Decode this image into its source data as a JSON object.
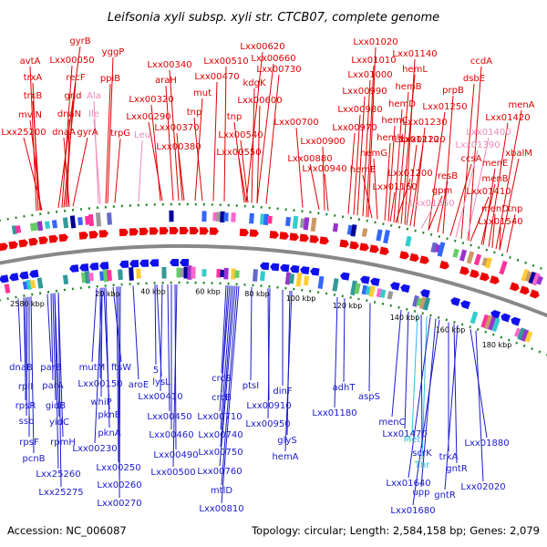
{
  "title": "Leifsonia xyli subsp. xyli str. CTCB07, complete genome",
  "footer": {
    "accession": "Accession: NC_006087",
    "summary": "Topology: circular; Length: 2,584,158 bp; Genes: 2,079"
  },
  "colors": {
    "upper_label": "#dd0000",
    "upper_label_pink": "#ee88bb",
    "lower_label": "#1a1acc",
    "lower_label_cyan": "#33bbdd",
    "forward_arrow": "#ee0000",
    "reverse_arrow": "#1010ee",
    "backbone": "#888888",
    "dotted_ring": "#228822"
  },
  "kbp_ticks": [
    "2580 kbp",
    "20 kbp",
    "40 kbp",
    "60 kbp",
    "80 kbp",
    "100 kbp",
    "120 kbp",
    "140 kbp",
    "160 kbp",
    "180 kbp"
  ],
  "upper_labels": [
    {
      "text": "avtA",
      "color": "red"
    },
    {
      "text": "trxA",
      "color": "red"
    },
    {
      "text": "trxB",
      "color": "red"
    },
    {
      "text": "mviN",
      "color": "red"
    },
    {
      "text": "Lxx25200",
      "color": "red"
    },
    {
      "text": "gyrB",
      "color": "red"
    },
    {
      "text": "Lxx00050",
      "color": "red"
    },
    {
      "text": "recF",
      "color": "red"
    },
    {
      "text": "gnd",
      "color": "red"
    },
    {
      "text": "dnaN",
      "color": "red"
    },
    {
      "text": "dnaA",
      "color": "red"
    },
    {
      "text": "gyrA",
      "color": "red"
    },
    {
      "text": "yggP",
      "color": "red"
    },
    {
      "text": "ppiB",
      "color": "red"
    },
    {
      "text": "Ala",
      "color": "pink"
    },
    {
      "text": "Ile",
      "color": "pink"
    },
    {
      "text": "trpG",
      "color": "red"
    },
    {
      "text": "Leu",
      "color": "pink"
    },
    {
      "text": "araH",
      "color": "red"
    },
    {
      "text": "Lxx00340",
      "color": "red"
    },
    {
      "text": "Lxx00320",
      "color": "red"
    },
    {
      "text": "Lxx00290",
      "color": "red"
    },
    {
      "text": "Lxx00370",
      "color": "red"
    },
    {
      "text": "Lxx00380",
      "color": "red"
    },
    {
      "text": "mut",
      "color": "red"
    },
    {
      "text": "tnp",
      "color": "red"
    },
    {
      "text": "Lxx00470",
      "color": "red"
    },
    {
      "text": "Lxx00510",
      "color": "red"
    },
    {
      "text": "Lxx00620",
      "color": "red"
    },
    {
      "text": "Lxx00660",
      "color": "red"
    },
    {
      "text": "Lxx00730",
      "color": "red"
    },
    {
      "text": "kdgK",
      "color": "red"
    },
    {
      "text": "Lxx00600",
      "color": "red"
    },
    {
      "text": "tnp",
      "color": "red"
    },
    {
      "text": "Lxx00540",
      "color": "red"
    },
    {
      "text": "Lxx00550",
      "color": "red"
    },
    {
      "text": "Lxx00700",
      "color": "red"
    },
    {
      "text": "Lxx01020",
      "color": "red"
    },
    {
      "text": "Lxx01010",
      "color": "red"
    },
    {
      "text": "Lxx01000",
      "color": "red"
    },
    {
      "text": "Lxx00990",
      "color": "red"
    },
    {
      "text": "Lxx00980",
      "color": "red"
    },
    {
      "text": "Lxx00970",
      "color": "red"
    },
    {
      "text": "Lxx00900",
      "color": "red"
    },
    {
      "text": "Lxx00880",
      "color": "red"
    },
    {
      "text": "Lxx00940",
      "color": "red"
    },
    {
      "text": "Lxx01140",
      "color": "red"
    },
    {
      "text": "hemL",
      "color": "red"
    },
    {
      "text": "hemB",
      "color": "red"
    },
    {
      "text": "hemD",
      "color": "red"
    },
    {
      "text": "hemC",
      "color": "red"
    },
    {
      "text": "hemH",
      "color": "red"
    },
    {
      "text": "hemG",
      "color": "red"
    },
    {
      "text": "hemE",
      "color": "red"
    },
    {
      "text": "Lxx01160",
      "color": "red"
    },
    {
      "text": "Lxx01200",
      "color": "red"
    },
    {
      "text": "Lxx01210",
      "color": "red"
    },
    {
      "text": "Lxx01220",
      "color": "red"
    },
    {
      "text": "Lxx01230",
      "color": "red"
    },
    {
      "text": "Lxx01250",
      "color": "red"
    },
    {
      "text": "prpB",
      "color": "red"
    },
    {
      "text": "ccdA",
      "color": "red"
    },
    {
      "text": "dsbE",
      "color": "red"
    },
    {
      "text": "Lxx01390",
      "color": "pink"
    },
    {
      "text": "ccsA",
      "color": "red"
    },
    {
      "text": "resB",
      "color": "red"
    },
    {
      "text": "gpm",
      "color": "red"
    },
    {
      "text": "Lxx01350",
      "color": "pink"
    },
    {
      "text": "Lxx01400",
      "color": "pink"
    },
    {
      "text": "Lxx01410",
      "color": "red"
    },
    {
      "text": "menA",
      "color": "red"
    },
    {
      "text": "Lxx01420",
      "color": "red"
    },
    {
      "text": "xbalM",
      "color": "red"
    },
    {
      "text": "menE",
      "color": "red"
    },
    {
      "text": "menB",
      "color": "red"
    },
    {
      "text": "menD",
      "color": "red"
    },
    {
      "text": "tnp",
      "color": "red"
    },
    {
      "text": "Lxx01540",
      "color": "red"
    }
  ],
  "lower_labels": [
    {
      "text": "dnaB",
      "color": "blue"
    },
    {
      "text": "parB",
      "color": "blue"
    },
    {
      "text": "rpII",
      "color": "blue"
    },
    {
      "text": "parA",
      "color": "blue"
    },
    {
      "text": "rpsR",
      "color": "blue"
    },
    {
      "text": "gidB",
      "color": "blue"
    },
    {
      "text": "ssb",
      "color": "blue"
    },
    {
      "text": "yidC",
      "color": "blue"
    },
    {
      "text": "rpsF",
      "color": "blue"
    },
    {
      "text": "rpmH",
      "color": "blue"
    },
    {
      "text": "pcnB",
      "color": "blue"
    },
    {
      "text": "Lxx25260",
      "color": "blue"
    },
    {
      "text": "Lxx25275",
      "color": "blue"
    },
    {
      "text": "mutM",
      "color": "blue"
    },
    {
      "text": "Lxx00150",
      "color": "blue"
    },
    {
      "text": "whiP",
      "color": "blue"
    },
    {
      "text": "pknB",
      "color": "blue"
    },
    {
      "text": "pknA",
      "color": "blue"
    },
    {
      "text": "Lxx00230",
      "color": "blue"
    },
    {
      "text": "ftsW",
      "color": "blue"
    },
    {
      "text": "aroE",
      "color": "blue"
    },
    {
      "text": "Lxx00250",
      "color": "blue"
    },
    {
      "text": "Lxx00260",
      "color": "blue"
    },
    {
      "text": "Lxx00270",
      "color": "blue"
    },
    {
      "text": "5",
      "color": "blue"
    },
    {
      "text": "lysL",
      "color": "blue"
    },
    {
      "text": "Lxx00410",
      "color": "blue"
    },
    {
      "text": "Lxx00450",
      "color": "blue"
    },
    {
      "text": "Lxx00460",
      "color": "blue"
    },
    {
      "text": "Lxx00490",
      "color": "blue"
    },
    {
      "text": "Lxx00500",
      "color": "blue"
    },
    {
      "text": "crcB",
      "color": "blue"
    },
    {
      "text": "crcB",
      "color": "blue"
    },
    {
      "text": "Lxx00710",
      "color": "blue"
    },
    {
      "text": "Lxx00740",
      "color": "blue"
    },
    {
      "text": "Lxx00750",
      "color": "blue"
    },
    {
      "text": "Lxx00760",
      "color": "blue"
    },
    {
      "text": "mtlD",
      "color": "blue"
    },
    {
      "text": "Lxx00810",
      "color": "blue"
    },
    {
      "text": "ptsI",
      "color": "blue"
    },
    {
      "text": "Lxx00910",
      "color": "blue"
    },
    {
      "text": "Lxx00950",
      "color": "blue"
    },
    {
      "text": "dinF",
      "color": "blue"
    },
    {
      "text": "glyS",
      "color": "blue"
    },
    {
      "text": "hemA",
      "color": "blue"
    },
    {
      "text": "adhT",
      "color": "blue"
    },
    {
      "text": "Lxx01180",
      "color": "blue"
    },
    {
      "text": "aspS",
      "color": "blue"
    },
    {
      "text": "menC",
      "color": "blue"
    },
    {
      "text": "Lxx01470",
      "color": "blue"
    },
    {
      "text": "Met",
      "color": "cyan"
    },
    {
      "text": "scrK",
      "color": "blue"
    },
    {
      "text": "Thr",
      "color": "cyan"
    },
    {
      "text": "Lxx01640",
      "color": "blue"
    },
    {
      "text": "upp",
      "color": "blue"
    },
    {
      "text": "Lxx01680",
      "color": "blue"
    },
    {
      "text": "trkA",
      "color": "blue"
    },
    {
      "text": "gntR",
      "color": "blue"
    },
    {
      "text": "gntR",
      "color": "blue"
    },
    {
      "text": "Lxx01880",
      "color": "blue"
    },
    {
      "text": "Lxx02020",
      "color": "blue"
    }
  ]
}
